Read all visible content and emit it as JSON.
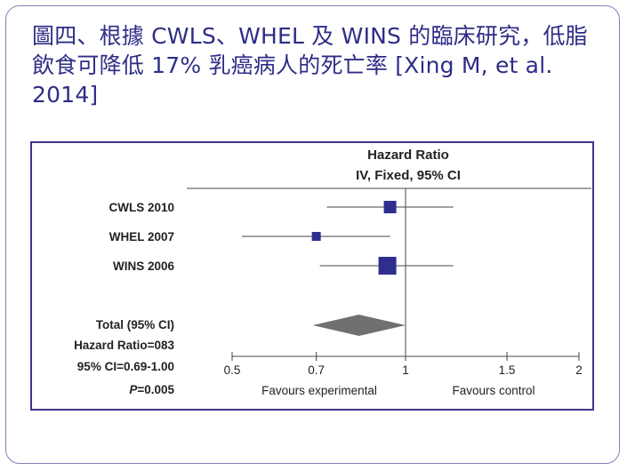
{
  "title": "圖四、根據 CWLS、WHEL 及 WINS 的臨床研究，低脂飲食可降低 17% 乳癌病人的死亡率 [Xing M, et al. 2014]",
  "chart_data": {
    "type": "forest",
    "header": [
      "Hazard Ratio",
      "IV, Fixed, 95% CI"
    ],
    "studies": [
      {
        "label": "CWLS 2010",
        "hr": 0.94,
        "ci": [
          0.73,
          1.21
        ]
      },
      {
        "label": "WHEL 2007",
        "hr": 0.7,
        "ci": [
          0.52,
          0.94
        ]
      },
      {
        "label": "WINS 2006",
        "hr": 0.93,
        "ci": [
          0.71,
          1.21
        ]
      }
    ],
    "total": {
      "label": "Total (95% CI)",
      "hr": 0.83,
      "ci": [
        0.69,
        1.0
      ]
    },
    "summary_lines": [
      "Hazard Ratio=083",
      "95% CI=0.69-1.00"
    ],
    "p_label": "P",
    "p_value": "=0.005",
    "axis": {
      "ticks": [
        0.5,
        0.7,
        1,
        1.5,
        2
      ],
      "tick_labels": [
        "0.5",
        "0.7",
        "1",
        "1.5",
        "2"
      ],
      "range": [
        0.5,
        2
      ],
      "scale": "log"
    },
    "favours_left": "Favours experimental",
    "favours_right": "Favours control",
    "colors": {
      "marker": "#2e2e8f",
      "diamond": "#707070",
      "line": "#444444",
      "text": "#222222"
    }
  }
}
